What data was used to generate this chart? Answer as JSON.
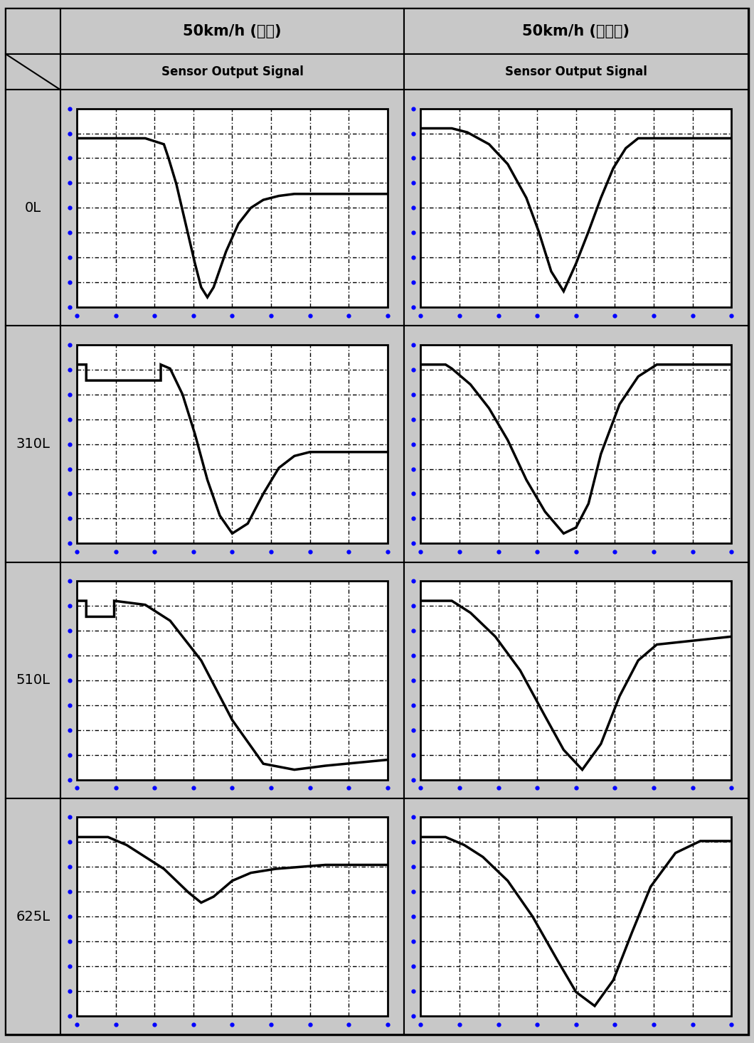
{
  "title_col1": "50km/h (성인)",
  "title_col2": "50km/h (어린이)",
  "subtitle": "Sensor Output Signal",
  "row_labels": [
    "0L",
    "310L",
    "510L",
    "625L"
  ],
  "background_color": "#c8c8c8",
  "plot_bg": "#ffffff",
  "grid_color": "#000000",
  "signal_color": "#000000",
  "dot_color": "#0000ff",
  "curves": {
    "adult_0L": {
      "x": [
        0.0,
        0.02,
        0.22,
        0.28,
        0.295,
        0.32,
        0.35,
        0.38,
        0.4,
        0.42,
        0.44,
        0.48,
        0.52,
        0.56,
        0.6,
        0.65,
        0.7,
        1.0
      ],
      "y": [
        0.85,
        0.85,
        0.85,
        0.82,
        0.75,
        0.62,
        0.42,
        0.22,
        0.1,
        0.05,
        0.1,
        0.28,
        0.42,
        0.5,
        0.54,
        0.56,
        0.57,
        0.57
      ]
    },
    "child_0L": {
      "x": [
        0.0,
        0.1,
        0.15,
        0.22,
        0.28,
        0.34,
        0.38,
        0.42,
        0.46,
        0.5,
        0.54,
        0.58,
        0.62,
        0.66,
        0.7,
        1.0
      ],
      "y": [
        0.9,
        0.9,
        0.88,
        0.82,
        0.72,
        0.55,
        0.38,
        0.18,
        0.08,
        0.22,
        0.38,
        0.55,
        0.7,
        0.8,
        0.85,
        0.85
      ]
    },
    "adult_310L": {
      "x": [
        0.0,
        0.03,
        0.03,
        0.27,
        0.27,
        0.3,
        0.34,
        0.38,
        0.42,
        0.46,
        0.5,
        0.55,
        0.6,
        0.65,
        0.7,
        0.75,
        1.0
      ],
      "y": [
        0.9,
        0.9,
        0.82,
        0.82,
        0.9,
        0.88,
        0.75,
        0.55,
        0.32,
        0.14,
        0.05,
        0.1,
        0.25,
        0.38,
        0.44,
        0.46,
        0.46
      ]
    },
    "child_310L": {
      "x": [
        0.0,
        0.08,
        0.1,
        0.16,
        0.22,
        0.28,
        0.34,
        0.4,
        0.46,
        0.5,
        0.54,
        0.58,
        0.64,
        0.7,
        0.76,
        0.82,
        1.0
      ],
      "y": [
        0.9,
        0.9,
        0.88,
        0.8,
        0.68,
        0.52,
        0.32,
        0.16,
        0.05,
        0.08,
        0.2,
        0.45,
        0.7,
        0.84,
        0.9,
        0.9,
        0.9
      ]
    },
    "adult_510L": {
      "x": [
        0.0,
        0.03,
        0.03,
        0.12,
        0.12,
        0.22,
        0.3,
        0.4,
        0.5,
        0.6,
        0.7,
        0.8,
        1.0
      ],
      "y": [
        0.9,
        0.9,
        0.82,
        0.82,
        0.9,
        0.88,
        0.8,
        0.6,
        0.3,
        0.08,
        0.05,
        0.07,
        0.1
      ]
    },
    "child_510L": {
      "x": [
        0.0,
        0.1,
        0.16,
        0.24,
        0.32,
        0.4,
        0.46,
        0.52,
        0.58,
        0.64,
        0.7,
        0.76,
        1.0
      ],
      "y": [
        0.9,
        0.9,
        0.84,
        0.72,
        0.55,
        0.32,
        0.15,
        0.05,
        0.18,
        0.42,
        0.6,
        0.68,
        0.72
      ]
    },
    "adult_625L": {
      "x": [
        0.0,
        0.1,
        0.16,
        0.22,
        0.28,
        0.32,
        0.36,
        0.4,
        0.44,
        0.5,
        0.56,
        0.64,
        0.72,
        0.8,
        1.0
      ],
      "y": [
        0.9,
        0.9,
        0.86,
        0.8,
        0.74,
        0.68,
        0.62,
        0.57,
        0.6,
        0.68,
        0.72,
        0.74,
        0.75,
        0.76,
        0.76
      ]
    },
    "child_625L": {
      "x": [
        0.0,
        0.08,
        0.14,
        0.2,
        0.28,
        0.36,
        0.44,
        0.5,
        0.56,
        0.62,
        0.68,
        0.74,
        0.82,
        0.9,
        1.0
      ],
      "y": [
        0.9,
        0.9,
        0.86,
        0.8,
        0.68,
        0.5,
        0.28,
        0.12,
        0.05,
        0.18,
        0.42,
        0.65,
        0.82,
        0.88,
        0.88
      ]
    }
  }
}
